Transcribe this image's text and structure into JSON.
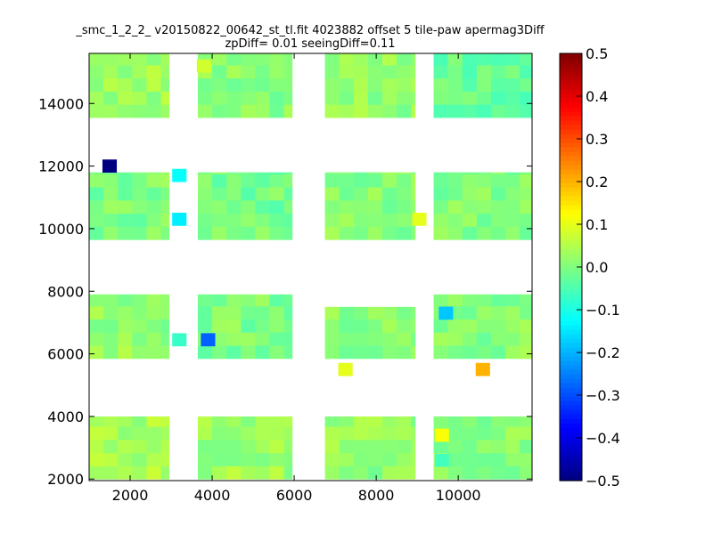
{
  "chart_data": {
    "type": "heatmap",
    "title_lines": [
      "_smc_1_2_2_ v20150822_00642_st_tl.fit 4023882 offset 5 tile-paw apermag3Diff",
      "zpDiff= 0.01 seeingDiff=0.11"
    ],
    "xlabel": "",
    "ylabel": "",
    "xlim": [
      1000,
      11800
    ],
    "ylim": [
      1950,
      15600
    ],
    "xticks": [
      2000,
      4000,
      6000,
      8000,
      10000
    ],
    "yticks": [
      2000,
      4000,
      6000,
      8000,
      10000,
      12000,
      14000
    ],
    "colormap": "jet",
    "clim": [
      -0.5,
      0.5
    ],
    "colorbar_ticks": [
      -0.5,
      -0.4,
      -0.3,
      -0.2,
      -0.1,
      0.0,
      0.1,
      0.2,
      0.3,
      0.4,
      0.5
    ],
    "colorbar_tick_labels": [
      "−0.5",
      "−0.4",
      "−0.3",
      "−0.2",
      "−0.1",
      "0.0",
      "0.1",
      "0.2",
      "0.3",
      "0.4",
      "0.5"
    ],
    "cell_size": [
      350,
      420
    ],
    "blocks": [
      {
        "x": [
          1000,
          2950
        ],
        "y": [
          13550,
          15600
        ],
        "base": 0.03
      },
      {
        "x": [
          3650,
          5950
        ],
        "y": [
          13550,
          15600
        ],
        "base": 0.01
      },
      {
        "x": [
          6750,
          8950
        ],
        "y": [
          13550,
          15600
        ],
        "base": 0.02
      },
      {
        "x": [
          9400,
          11800
        ],
        "y": [
          13550,
          15600
        ],
        "base": -0.02
      },
      {
        "x": [
          1000,
          2950
        ],
        "y": [
          9650,
          11800
        ],
        "base": 0.0
      },
      {
        "x": [
          3650,
          5950
        ],
        "y": [
          9650,
          11800
        ],
        "base": -0.01
      },
      {
        "x": [
          6750,
          8950
        ],
        "y": [
          9650,
          11800
        ],
        "base": 0.01
      },
      {
        "x": [
          9400,
          11800
        ],
        "y": [
          9650,
          11800
        ],
        "base": 0.0
      },
      {
        "x": [
          1000,
          2950
        ],
        "y": [
          5850,
          7900
        ],
        "base": 0.02
      },
      {
        "x": [
          3650,
          5950
        ],
        "y": [
          5850,
          7900
        ],
        "base": 0.0
      },
      {
        "x": [
          6750,
          8950
        ],
        "y": [
          5850,
          7500
        ],
        "base": 0.01
      },
      {
        "x": [
          9400,
          11800
        ],
        "y": [
          5850,
          7900
        ],
        "base": 0.01
      },
      {
        "x": [
          1000,
          2950
        ],
        "y": [
          2000,
          4000
        ],
        "base": 0.04
      },
      {
        "x": [
          3650,
          5950
        ],
        "y": [
          2000,
          4000
        ],
        "base": 0.03
      },
      {
        "x": [
          6750,
          8950
        ],
        "y": [
          2000,
          4000
        ],
        "base": 0.02
      },
      {
        "x": [
          9400,
          11800
        ],
        "y": [
          2000,
          4000
        ],
        "base": 0.01
      }
    ],
    "outlier_cells": [
      {
        "x": 1500,
        "y": 12000,
        "value": -0.5
      },
      {
        "x": 3200,
        "y": 11700,
        "value": -0.12
      },
      {
        "x": 3200,
        "y": 10300,
        "value": -0.14
      },
      {
        "x": 3900,
        "y": 6450,
        "value": -0.28
      },
      {
        "x": 3200,
        "y": 6450,
        "value": -0.07
      },
      {
        "x": 9700,
        "y": 7300,
        "value": -0.18
      },
      {
        "x": 10600,
        "y": 5500,
        "value": 0.2
      },
      {
        "x": 7250,
        "y": 5500,
        "value": 0.1
      },
      {
        "x": 9600,
        "y": 3400,
        "value": 0.12
      },
      {
        "x": 9600,
        "y": 2600,
        "value": -0.06
      },
      {
        "x": 3800,
        "y": 15200,
        "value": 0.08
      },
      {
        "x": 9050,
        "y": 10300,
        "value": 0.1
      }
    ]
  }
}
